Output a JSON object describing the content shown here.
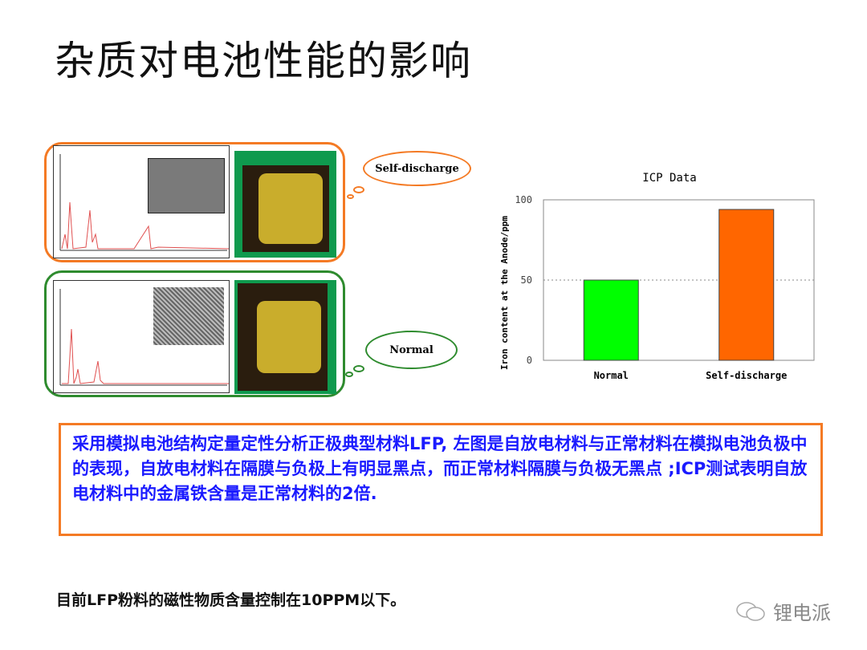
{
  "title": "杂质对电池性能的影响",
  "callouts": {
    "self_discharge": "Self-discharge",
    "normal": "Normal"
  },
  "note": "采用模拟电池结构定量定性分析正极典型材料LFP, 左图是自放电材料与正常材料在模拟电池负极中的表现，自放电材料在隔膜与负极上有明显黑点，而正常材料隔膜与负极无黑点 ;ICP测试表明自放电材料中的金属铁含量是正常材料的2倍.",
  "footer": "目前LFP粉料的磁性物质含量控制在10PPM以下。",
  "watermark": "锂电派",
  "colors": {
    "orange": "#f47a24",
    "green": "#2e8b2e",
    "text_blue": "#1a1aff"
  },
  "chart_data": {
    "type": "bar",
    "title": "ICP Data",
    "ylabel": "Iron content at the Anode/ppm",
    "xlabel": "",
    "categories": [
      "Normal",
      "Self-discharge"
    ],
    "values": [
      50,
      94
    ],
    "bar_colors": [
      "#00ff00",
      "#ff6600"
    ],
    "ylim": [
      0,
      100
    ],
    "yticks": [
      0,
      50,
      100
    ],
    "grid": "dotted line at 50"
  }
}
